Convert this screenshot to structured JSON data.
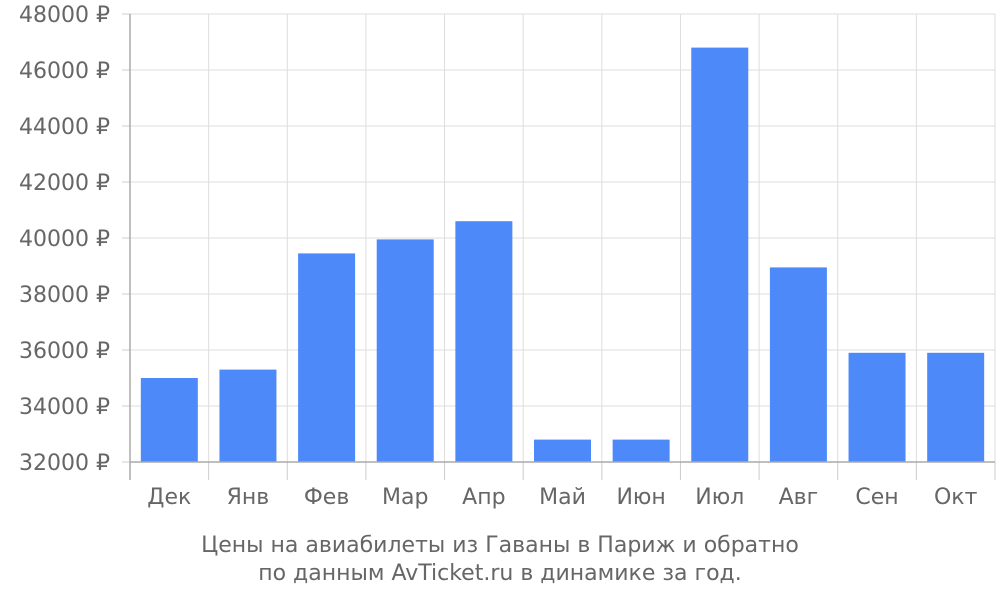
{
  "chart_data": {
    "type": "bar",
    "categories": [
      "Дек",
      "Янв",
      "Фев",
      "Мар",
      "Апр",
      "Май",
      "Июн",
      "Июл",
      "Авг",
      "Сен",
      "Окт"
    ],
    "values": [
      35000,
      35300,
      39450,
      39950,
      40600,
      32800,
      32800,
      46800,
      38950,
      35900,
      35900
    ],
    "y_ticks": [
      32000,
      34000,
      36000,
      38000,
      40000,
      42000,
      44000,
      46000,
      48000
    ],
    "y_tick_labels": [
      "32000 ₽",
      "34000 ₽",
      "36000 ₽",
      "38000 ₽",
      "40000 ₽",
      "42000 ₽",
      "44000 ₽",
      "46000 ₽",
      "48000 ₽"
    ],
    "ylim": [
      32000,
      48000
    ],
    "grid": true,
    "bar_color": "#4d89f9",
    "caption_lines": [
      "Цены на авиабилеты из Гаваны в Париж и обратно",
      "по данным AvTicket.ru в динамике за год."
    ]
  }
}
